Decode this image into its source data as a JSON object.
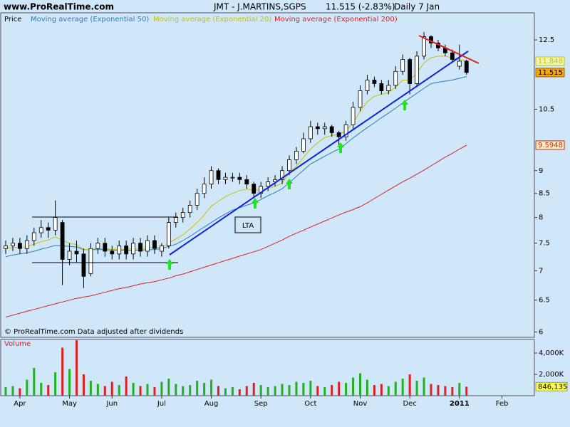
{
  "chart_data": {
    "type": "candlestick",
    "site": "www.ProRealTime.com",
    "title": "JMT - J.MARTINS,SGPS",
    "quote": "11.515 (-2.83%)",
    "period": "Daily  7 Jan",
    "legend_label": "Price",
    "copyright": "© ProRealTime.com  Data adjusted after dividends",
    "annotation": "LTA",
    "categories": [
      null,
      null,
      "Apr",
      null,
      null,
      null,
      null,
      null,
      null,
      "May",
      null,
      null,
      null,
      null,
      null,
      "Jun",
      null,
      null,
      null,
      null,
      null,
      null,
      "Jul",
      null,
      null,
      null,
      null,
      null,
      null,
      "Aug",
      null,
      null,
      null,
      null,
      null,
      null,
      "Sep",
      null,
      null,
      null,
      null,
      null,
      null,
      "Oct",
      null,
      null,
      null,
      null,
      null,
      null,
      "Nov",
      null,
      null,
      null,
      null,
      null,
      null,
      "Dec",
      null,
      null,
      null,
      null,
      null,
      null,
      "2011",
      null,
      null,
      null,
      null,
      null,
      "Feb",
      null
    ],
    "open": [
      7.4,
      7.45,
      7.5,
      7.4,
      7.55,
      7.7,
      7.8,
      7.75,
      7.9,
      7.2,
      7.35,
      7.3,
      6.95,
      7.4,
      7.5,
      7.35,
      7.3,
      7.45,
      7.3,
      7.5,
      7.35,
      7.55,
      7.35,
      7.45,
      7.9,
      8.0,
      8.1,
      8.25,
      8.5,
      8.7,
      9.0,
      8.8,
      8.85,
      8.85,
      8.8,
      8.7,
      8.5,
      8.65,
      8.75,
      8.8,
      9.0,
      9.25,
      9.45,
      9.75,
      10.05,
      10.0,
      10.05,
      9.9,
      9.8,
      10.1,
      10.55,
      11.0,
      11.3,
      11.2,
      11.0,
      11.15,
      11.55,
      11.9,
      11.2,
      12.0,
      12.6,
      12.4,
      12.25,
      12.1,
      11.7,
      11.85,
      null,
      null,
      null,
      null,
      null,
      null
    ],
    "high": [
      7.55,
      7.6,
      7.6,
      7.65,
      7.8,
      7.95,
      7.9,
      8.35,
      7.95,
      7.5,
      7.55,
      7.4,
      7.5,
      7.6,
      7.6,
      7.45,
      7.55,
      7.55,
      7.6,
      7.6,
      7.65,
      7.65,
      7.5,
      8.0,
      8.1,
      8.2,
      8.35,
      8.6,
      8.85,
      9.1,
      9.05,
      8.95,
      8.95,
      8.95,
      8.9,
      8.75,
      8.75,
      8.85,
      8.9,
      9.1,
      9.35,
      9.55,
      9.9,
      10.2,
      10.15,
      10.15,
      10.1,
      9.95,
      10.2,
      10.7,
      11.15,
      11.45,
      11.4,
      11.3,
      11.3,
      11.7,
      12.05,
      11.95,
      12.15,
      12.75,
      12.65,
      12.5,
      12.35,
      12.2,
      12.35,
      11.9,
      null,
      null,
      null,
      null,
      null,
      null
    ],
    "low": [
      7.3,
      7.35,
      7.3,
      7.3,
      7.45,
      7.6,
      7.6,
      7.65,
      6.75,
      7.1,
      7.15,
      6.7,
      6.9,
      7.3,
      7.25,
      7.2,
      7.2,
      7.2,
      7.2,
      7.25,
      7.25,
      7.3,
      7.25,
      7.4,
      7.8,
      7.9,
      8.0,
      8.15,
      8.4,
      8.6,
      8.7,
      8.7,
      8.75,
      8.7,
      8.6,
      8.4,
      8.4,
      8.55,
      8.65,
      8.7,
      8.9,
      9.15,
      9.4,
      9.65,
      9.85,
      9.85,
      9.8,
      9.6,
      9.7,
      10.0,
      10.45,
      10.9,
      11.1,
      10.9,
      10.9,
      11.05,
      11.45,
      10.9,
      11.1,
      11.9,
      12.25,
      12.15,
      12.0,
      11.8,
      11.6,
      11.45,
      null,
      null,
      null,
      null,
      null,
      null
    ],
    "close": [
      7.45,
      7.5,
      7.4,
      7.55,
      7.7,
      7.8,
      7.75,
      8.0,
      7.2,
      7.35,
      7.3,
      6.9,
      7.4,
      7.5,
      7.35,
      7.3,
      7.45,
      7.3,
      7.5,
      7.35,
      7.55,
      7.4,
      7.45,
      7.9,
      8.0,
      8.1,
      8.25,
      8.5,
      8.7,
      9.0,
      8.8,
      8.85,
      8.85,
      8.8,
      8.7,
      8.5,
      8.65,
      8.75,
      8.8,
      9.0,
      9.25,
      9.45,
      9.75,
      10.05,
      10.0,
      10.05,
      9.9,
      9.8,
      10.1,
      10.55,
      11.0,
      11.3,
      11.2,
      11.0,
      11.15,
      11.55,
      11.9,
      11.2,
      12.0,
      12.6,
      12.4,
      12.25,
      12.1,
      11.9,
      11.85,
      11.515,
      null,
      null,
      null,
      null,
      null,
      null
    ],
    "close_label_color": "#ffa500",
    "up_color": "#ffffff",
    "down_color": "#000000",
    "series": [
      {
        "name": "Moving average (Exponential 50)",
        "color": "#2b7bb9",
        "values": [
          7.25,
          7.28,
          7.3,
          7.32,
          7.35,
          7.39,
          7.42,
          7.46,
          7.45,
          7.44,
          7.43,
          7.38,
          7.38,
          7.38,
          7.38,
          7.37,
          7.37,
          7.37,
          7.37,
          7.37,
          7.38,
          7.38,
          7.4,
          7.44,
          7.48,
          7.55,
          7.63,
          7.72,
          7.81,
          7.9,
          7.99,
          8.07,
          8.15,
          8.2,
          8.25,
          8.3,
          8.37,
          8.45,
          8.52,
          8.6,
          8.73,
          8.87,
          9.01,
          9.15,
          9.24,
          9.33,
          9.42,
          9.5,
          9.63,
          9.77,
          9.9,
          10.03,
          10.15,
          10.28,
          10.4,
          10.53,
          10.67,
          10.8,
          10.93,
          11.07,
          11.2,
          11.24,
          11.27,
          11.3,
          11.35,
          11.4,
          null,
          null,
          null,
          null,
          null,
          null
        ]
      },
      {
        "name": "Moving average (Exponential 20)",
        "color": "#c8c000",
        "show_last": true,
        "values": [
          7.4,
          7.42,
          7.42,
          7.44,
          7.48,
          7.53,
          7.56,
          7.62,
          7.55,
          7.5,
          7.47,
          7.38,
          7.38,
          7.4,
          7.4,
          7.38,
          7.39,
          7.38,
          7.4,
          7.4,
          7.42,
          7.42,
          7.42,
          7.5,
          7.58,
          7.66,
          7.77,
          7.9,
          8.05,
          8.23,
          8.33,
          8.43,
          8.5,
          8.56,
          8.59,
          8.57,
          8.58,
          8.61,
          8.65,
          8.72,
          8.95,
          9.1,
          9.3,
          9.5,
          9.65,
          9.78,
          9.83,
          9.85,
          9.95,
          10.15,
          10.45,
          10.7,
          10.85,
          10.9,
          10.95,
          11.1,
          11.3,
          11.3,
          11.5,
          11.8,
          11.95,
          12.0,
          12.0,
          11.95,
          11.9,
          11.848,
          null,
          null,
          null,
          null,
          null,
          null
        ]
      },
      {
        "name": "Moving average (Exponential 200)",
        "color": "#e02020",
        "show_last": true,
        "values": [
          6.23,
          6.26,
          6.29,
          6.32,
          6.35,
          6.38,
          6.41,
          6.44,
          6.47,
          6.5,
          6.53,
          6.55,
          6.57,
          6.6,
          6.63,
          6.66,
          6.69,
          6.71,
          6.74,
          6.77,
          6.79,
          6.81,
          6.84,
          6.87,
          6.91,
          6.94,
          6.98,
          7.02,
          7.06,
          7.1,
          7.14,
          7.18,
          7.22,
          7.26,
          7.3,
          7.34,
          7.38,
          7.44,
          7.5,
          7.56,
          7.63,
          7.69,
          7.75,
          7.81,
          7.87,
          7.93,
          7.99,
          8.05,
          8.11,
          8.16,
          8.22,
          8.3,
          8.39,
          8.48,
          8.57,
          8.66,
          8.75,
          8.83,
          8.92,
          9.01,
          9.11,
          9.21,
          9.31,
          9.4,
          9.5,
          9.5948,
          null,
          null,
          null,
          null,
          null,
          null
        ]
      }
    ],
    "log_scale": true,
    "ylim": [
      5.92,
      13.38
    ],
    "yticks": [
      6,
      6.5,
      7,
      7.5,
      8,
      8.5,
      9,
      10.5,
      12.5
    ],
    "volume": {
      "title": "Volume",
      "up_color": "#22b022",
      "down_color": "#e02020",
      "label_color": "#ffff40",
      "values": [
        800000,
        900000,
        700000,
        1500000,
        2600000,
        1200000,
        1000000,
        2200000,
        4500000,
        2500000,
        5200000,
        2000000,
        1400000,
        1100000,
        900000,
        1300000,
        1000000,
        1800000,
        1200000,
        900000,
        1100000,
        800000,
        1300000,
        1600000,
        1100000,
        900000,
        1000000,
        1400000,
        1200000,
        1500000,
        900000,
        700000,
        800000,
        600000,
        900000,
        1200000,
        1000000,
        800000,
        900000,
        1100000,
        1000000,
        1300000,
        1200000,
        1400000,
        900000,
        800000,
        1000000,
        1300000,
        1200000,
        1700000,
        2100000,
        1500000,
        1000000,
        1100000,
        900000,
        1300000,
        1600000,
        2000000,
        1400000,
        1700000,
        1100000,
        1000000,
        900000,
        800000,
        1200000,
        846135,
        null,
        null,
        null,
        null,
        null,
        null
      ],
      "value_labels": [
        null,
        null,
        null,
        null,
        null,
        null,
        null,
        null,
        null,
        null,
        null,
        null,
        null,
        null,
        null,
        null,
        null,
        null,
        null,
        null,
        null,
        null,
        null,
        null,
        null,
        null,
        null,
        null,
        null,
        null,
        null,
        null,
        null,
        null,
        null,
        null,
        null,
        null,
        null,
        null,
        null,
        null,
        null,
        null,
        null,
        null,
        null,
        null,
        null,
        null,
        null,
        null,
        null,
        null,
        null,
        null,
        null,
        null,
        null,
        null,
        null,
        null,
        null,
        null,
        null,
        "846,135",
        null,
        null,
        null,
        null,
        null,
        null
      ],
      "ylim": [
        0,
        5270000
      ],
      "yticks": [
        {
          "value": 2000000,
          "label": "2,000K"
        },
        {
          "value": 4000000,
          "label": "4,000K"
        }
      ]
    }
  }
}
